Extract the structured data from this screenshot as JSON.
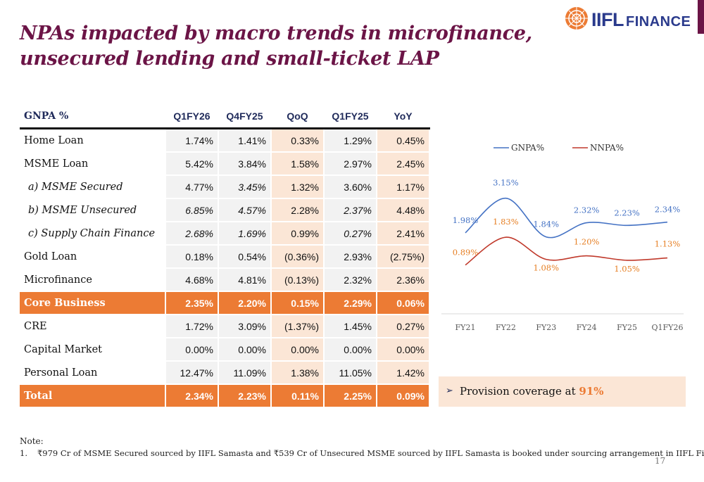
{
  "header": {
    "title": "NPAs impacted by macro trends in microfinance, unsecured lending and small-ticket LAP",
    "logo_text": "IIFL",
    "logo_suffix": "FINANCE"
  },
  "table": {
    "columns": [
      "GNPA %",
      "Q1FY26",
      "Q4FY25",
      "QoQ",
      "Q1FY25",
      "YoY"
    ],
    "rows": [
      {
        "label": "Home Loan",
        "values": [
          "1.74%",
          "1.41%",
          "0.33%",
          "1.29%",
          "0.45%"
        ]
      },
      {
        "label": "MSME Loan",
        "values": [
          "5.42%",
          "3.84%",
          "1.58%",
          "2.97%",
          "2.45%"
        ]
      },
      {
        "label": "a) MSME Secured",
        "values": [
          "4.77%",
          "3.45%",
          "1.32%",
          "3.60%",
          "1.17%"
        ]
      },
      {
        "label": "b) MSME Unsecured",
        "values": [
          "6.85%",
          "4.57%",
          "2.28%",
          "2.37%",
          "4.48%"
        ]
      },
      {
        "label": "c) Supply Chain Finance",
        "values": [
          "2.68%",
          "1.69%",
          "0.99%",
          "0.27%",
          "2.41%"
        ]
      },
      {
        "label": "Gold Loan",
        "values": [
          "0.18%",
          "0.54%",
          "(0.36%)",
          "2.93%",
          "(2.75%)"
        ]
      },
      {
        "label": "Microfinance",
        "values": [
          "4.68%",
          "4.81%",
          "(0.13%)",
          "2.32%",
          "2.36%"
        ]
      },
      {
        "label": "Core Business",
        "values": [
          "2.35%",
          "2.20%",
          "0.15%",
          "2.29%",
          "0.06%"
        ]
      },
      {
        "label": "CRE",
        "values": [
          "1.72%",
          "3.09%",
          "(1.37%)",
          "1.45%",
          "0.27%"
        ]
      },
      {
        "label": "Capital Market",
        "values": [
          "0.00%",
          "0.00%",
          "0.00%",
          "0.00%",
          "0.00%"
        ]
      },
      {
        "label": "Personal Loan",
        "values": [
          "12.47%",
          "11.09%",
          "1.38%",
          "11.05%",
          "1.42%"
        ]
      },
      {
        "label": "Total",
        "values": [
          "2.34%",
          "2.23%",
          "0.11%",
          "2.25%",
          "0.09%"
        ]
      }
    ]
  },
  "chart_data": {
    "type": "line",
    "x": [
      "FY21",
      "FY22",
      "FY23",
      "FY24",
      "FY25",
      "Q1FY26"
    ],
    "series": [
      {
        "name": "GNPA%",
        "values": [
          1.98,
          3.15,
          1.84,
          2.32,
          2.23,
          2.34
        ],
        "labels": [
          "1.98%",
          "3.15%",
          "1.84%",
          "2.32%",
          "2.23%",
          "2.34%"
        ],
        "color": "#4472c4"
      },
      {
        "name": "NNPA%",
        "values": [
          0.89,
          1.83,
          1.08,
          1.2,
          1.05,
          1.13
        ],
        "labels": [
          "0.89%",
          "1.83%",
          "1.08%",
          "1.20%",
          "1.05%",
          "1.13%"
        ],
        "color": "#c0392b"
      }
    ],
    "label_color_gnpa": "#4472c4",
    "label_color_nnpa": "#e67e22",
    "ylim": [
      0,
      4
    ],
    "legend_placement": "top",
    "grid": false
  },
  "provision": {
    "text": "Provision coverage at ",
    "value": "91%"
  },
  "notes": {
    "heading": "Note:",
    "number": "1.",
    "text": "₹979 Cr of MSME Secured sourced by IIFL Samasta and ₹539 Cr of Unsecured MSME sourced by IIFL Samasta is booked under sourcing arrangement in IIFL Finance"
  },
  "page_number": "17",
  "colors": {
    "title": "#6b1446",
    "accent_orange": "#ec7b34",
    "highlight": "#fbe6d6",
    "navy": "#1f2a5a"
  }
}
